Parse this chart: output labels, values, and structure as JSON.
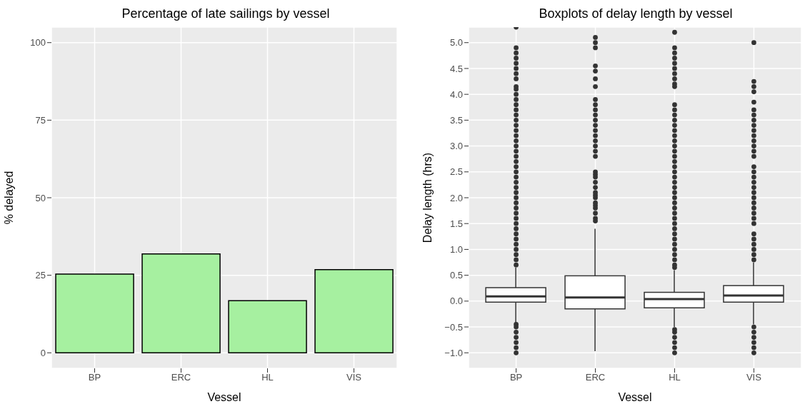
{
  "chart_data": [
    {
      "type": "bar",
      "title": "Percentage of late sailings by vessel",
      "xlabel": "Vessel",
      "ylabel": "% delayed",
      "categories": [
        "BP",
        "ERC",
        "HL",
        "VIS"
      ],
      "values": [
        25.4,
        31.9,
        16.8,
        26.8
      ],
      "color": "#a6f0a0",
      "ylim": [
        -5,
        105
      ],
      "yticks": [
        0,
        25,
        50,
        75,
        100
      ],
      "grid": true
    },
    {
      "type": "box",
      "title": "Boxplots of delay length by vessel",
      "xlabel": "Vessel",
      "ylabel": "Delay length (hrs)",
      "categories": [
        "BP",
        "ERC",
        "HL",
        "VIS"
      ],
      "ylim": [
        -1.3,
        5.3
      ],
      "yticks": [
        {
          "value": -1,
          "label": "−1.0"
        },
        {
          "value": -0.5,
          "label": "−0.5"
        },
        {
          "value": 0,
          "label": "0.0"
        },
        {
          "value": 0.5,
          "label": "0.5"
        },
        {
          "value": 1,
          "label": "1.0"
        },
        {
          "value": 1.5,
          "label": "1.5"
        },
        {
          "value": 2,
          "label": "2.0"
        },
        {
          "value": 2.5,
          "label": "2.5"
        },
        {
          "value": 3,
          "label": "3.0"
        },
        {
          "value": 3.5,
          "label": "3.5"
        },
        {
          "value": 4,
          "label": "4.0"
        },
        {
          "value": 4.5,
          "label": "4.5"
        },
        {
          "value": 5,
          "label": "5.0"
        }
      ],
      "grid": true,
      "boxes": [
        {
          "low": -0.42,
          "q1": -0.02,
          "median": 0.09,
          "q3": 0.26,
          "high": 0.65,
          "outliers": [
            0.7,
            0.8,
            0.9,
            1.0,
            1.1,
            1.2,
            1.3,
            1.4,
            1.5,
            1.6,
            1.7,
            1.8,
            1.9,
            2.0,
            2.1,
            2.2,
            2.3,
            2.4,
            2.5,
            2.6,
            2.7,
            2.8,
            2.9,
            3.0,
            3.1,
            3.2,
            3.3,
            3.4,
            3.5,
            3.6,
            3.7,
            3.8,
            3.9,
            4.0,
            4.1,
            4.15,
            4.3,
            4.4,
            4.5,
            4.6,
            4.7,
            4.8,
            4.9,
            5.3,
            -0.45,
            -0.5,
            -0.6,
            -0.7,
            -0.8,
            -0.9,
            -1.0
          ]
        },
        {
          "low": -0.97,
          "q1": -0.15,
          "median": 0.07,
          "q3": 0.49,
          "high": 1.4,
          "outliers": [
            1.55,
            1.6,
            1.7,
            1.8,
            1.85,
            1.9,
            2.0,
            2.05,
            2.1,
            2.2,
            2.3,
            2.4,
            2.45,
            2.5,
            2.8,
            2.9,
            3.0,
            3.1,
            3.2,
            3.3,
            3.4,
            3.5,
            3.6,
            3.7,
            3.8,
            3.9,
            4.15,
            4.3,
            4.45,
            4.55,
            4.9,
            5.0,
            5.1
          ]
        },
        {
          "low": -0.5,
          "q1": -0.13,
          "median": 0.04,
          "q3": 0.17,
          "high": 0.6,
          "outliers": [
            0.65,
            0.7,
            0.8,
            0.9,
            1.0,
            1.1,
            1.2,
            1.3,
            1.4,
            1.5,
            1.6,
            1.7,
            1.8,
            1.9,
            2.0,
            2.1,
            2.2,
            2.3,
            2.4,
            2.5,
            2.6,
            2.7,
            2.8,
            2.9,
            3.0,
            3.1,
            3.2,
            3.3,
            3.4,
            3.5,
            3.6,
            3.7,
            3.8,
            4.15,
            4.2,
            4.3,
            4.4,
            4.5,
            4.6,
            4.7,
            4.8,
            4.9,
            5.2,
            -0.55,
            -0.6,
            -0.7,
            -0.8,
            -0.9,
            -1.0
          ]
        },
        {
          "low": -0.45,
          "q1": -0.02,
          "median": 0.11,
          "q3": 0.3,
          "high": 0.75,
          "outliers": [
            0.8,
            0.9,
            1.0,
            1.1,
            1.2,
            1.3,
            1.5,
            1.6,
            1.7,
            1.8,
            1.9,
            2.0,
            2.1,
            2.2,
            2.3,
            2.4,
            2.5,
            2.6,
            2.8,
            2.9,
            3.0,
            3.1,
            3.2,
            3.3,
            3.4,
            3.5,
            3.6,
            3.7,
            3.85,
            4.05,
            4.15,
            4.25,
            5.0,
            -0.5,
            -0.6,
            -0.7,
            -0.8,
            -0.9,
            -1.0
          ]
        }
      ]
    }
  ]
}
